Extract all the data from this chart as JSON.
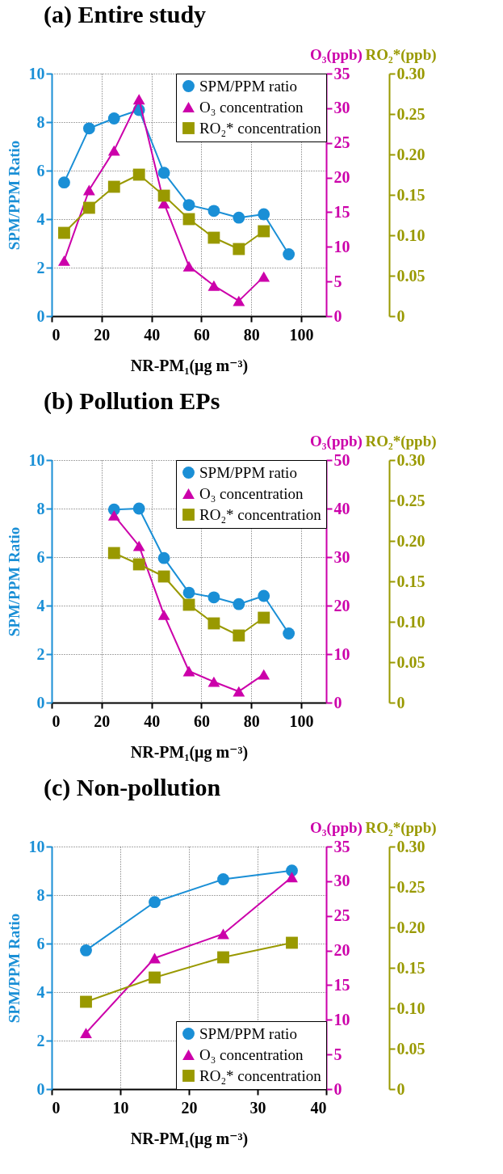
{
  "chart_data": [
    {
      "type": "line",
      "title": "(a) Entire study",
      "xlabel": "NR-PM₁(μg m⁻³)",
      "ylabel": "SPM/PPM Ratio",
      "y2label": "O₃(ppb)",
      "y3label": "RO₂*(ppb)",
      "x": [
        5,
        15,
        25,
        35,
        45,
        55,
        65,
        75,
        85,
        95
      ],
      "xlim": [
        0,
        110
      ],
      "xticks": [
        0,
        20,
        40,
        60,
        80,
        100
      ],
      "ylim": [
        0,
        10
      ],
      "yticks": [
        0,
        2,
        4,
        6,
        8,
        10
      ],
      "y2lim": [
        0,
        35
      ],
      "y2ticks": [
        0,
        5,
        10,
        15,
        20,
        25,
        30,
        35
      ],
      "y3lim": [
        0,
        0.3
      ],
      "y3ticks": [
        0,
        0.05,
        {
          "value": 0.1,
          "label": "0.10"
        },
        0.15,
        {
          "value": 0.2,
          "label": "0.20"
        },
        0.25,
        {
          "value": 0.3,
          "label": "0.30"
        }
      ],
      "grid": true,
      "legend": "top right",
      "series": [
        {
          "name": "SPM/PPM ratio",
          "color": "#1a8fd6",
          "marker": "circle",
          "axis": "y",
          "values": [
            5.51,
            7.74,
            8.15,
            8.5,
            5.91,
            4.58,
            4.34,
            4.06,
            4.2,
            2.55
          ]
        },
        {
          "name": "O₃ concentration",
          "color": "#cc00aa",
          "marker": "triangle",
          "axis": "y2",
          "values": [
            8.0,
            18.2,
            23.9,
            31.3,
            16.3,
            7.2,
            4.4,
            2.2,
            5.7,
            null
          ]
        },
        {
          "name": "RO₂* concentration",
          "color": "#999900",
          "marker": "square",
          "axis": "y3",
          "values": [
            0.103,
            0.134,
            0.16,
            0.175,
            0.149,
            0.12,
            0.097,
            0.083,
            0.105,
            null
          ]
        }
      ]
    },
    {
      "type": "line",
      "title": "(b) Pollution EPs",
      "xlabel": "NR-PM₁(μg m⁻³)",
      "ylabel": "SPM/PPM Ratio",
      "y2label": "O₃(ppb)",
      "y3label": "RO₂*(ppb)",
      "x": [
        25,
        35,
        45,
        55,
        65,
        75,
        85,
        95
      ],
      "xlim": [
        0,
        110
      ],
      "xticks": [
        0,
        20,
        40,
        60,
        80,
        100
      ],
      "ylim": [
        0,
        10
      ],
      "yticks": [
        0,
        2,
        4,
        6,
        8,
        10
      ],
      "y2lim": [
        0,
        50
      ],
      "y2ticks": [
        0,
        10,
        20,
        30,
        40,
        50
      ],
      "y3lim": [
        0,
        0.3
      ],
      "y3ticks": [
        0,
        0.05,
        {
          "value": 0.1,
          "label": "0.10"
        },
        0.15,
        {
          "value": 0.2,
          "label": "0.20"
        },
        0.25,
        {
          "value": 0.3,
          "label": "0.30"
        }
      ],
      "grid": true,
      "legend": "top right",
      "series": [
        {
          "name": "SPM/PPM ratio",
          "color": "#1a8fd6",
          "marker": "circle",
          "axis": "y",
          "values": [
            7.96,
            8.0,
            5.96,
            4.53,
            4.34,
            4.06,
            4.4,
            2.85
          ]
        },
        {
          "name": "O₃ concentration",
          "color": "#cc00aa",
          "marker": "triangle",
          "axis": "y2",
          "values": [
            38.6,
            32.3,
            18.1,
            6.5,
            4.3,
            2.3,
            5.8,
            null
          ]
        },
        {
          "name": "RO₂* concentration",
          "color": "#999900",
          "marker": "square",
          "axis": "y3",
          "values": [
            0.185,
            0.171,
            0.156,
            0.121,
            0.098,
            0.083,
            0.105,
            null
          ]
        }
      ]
    },
    {
      "type": "line",
      "title": "(c) Non-pollution",
      "xlabel": "NR-PM₁(μg m⁻³)",
      "ylabel": "SPM/PPM Ratio",
      "y2label": "O₃(ppb)",
      "y3label": "RO₂*(ppb)",
      "x": [
        5,
        15,
        25,
        35
      ],
      "xlim": [
        0,
        40
      ],
      "xticks": [
        0,
        10,
        20,
        30,
        40
      ],
      "ylim": [
        0,
        10
      ],
      "yticks": [
        0,
        2,
        4,
        6,
        8,
        10
      ],
      "y2lim": [
        0,
        35
      ],
      "y2ticks": [
        0,
        5,
        10,
        15,
        20,
        25,
        30,
        35
      ],
      "y3lim": [
        0,
        0.3
      ],
      "y3ticks": [
        0,
        0.05,
        {
          "value": 0.1,
          "label": "0.10"
        },
        0.15,
        {
          "value": 0.2,
          "label": "0.20"
        },
        0.25,
        {
          "value": 0.3,
          "label": "0.30"
        }
      ],
      "grid": true,
      "legend": "bottom right",
      "series": [
        {
          "name": "SPM/PPM ratio",
          "color": "#1a8fd6",
          "marker": "circle",
          "axis": "y",
          "values": [
            5.72,
            7.71,
            8.65,
            9.01
          ]
        },
        {
          "name": "O₃ concentration",
          "color": "#cc00aa",
          "marker": "triangle",
          "axis": "y2",
          "values": [
            8.1,
            18.9,
            22.4,
            30.6
          ]
        },
        {
          "name": "RO₂* concentration",
          "color": "#999900",
          "marker": "square",
          "axis": "y3",
          "values": [
            0.108,
            0.138,
            0.163,
            0.181
          ]
        }
      ]
    }
  ]
}
